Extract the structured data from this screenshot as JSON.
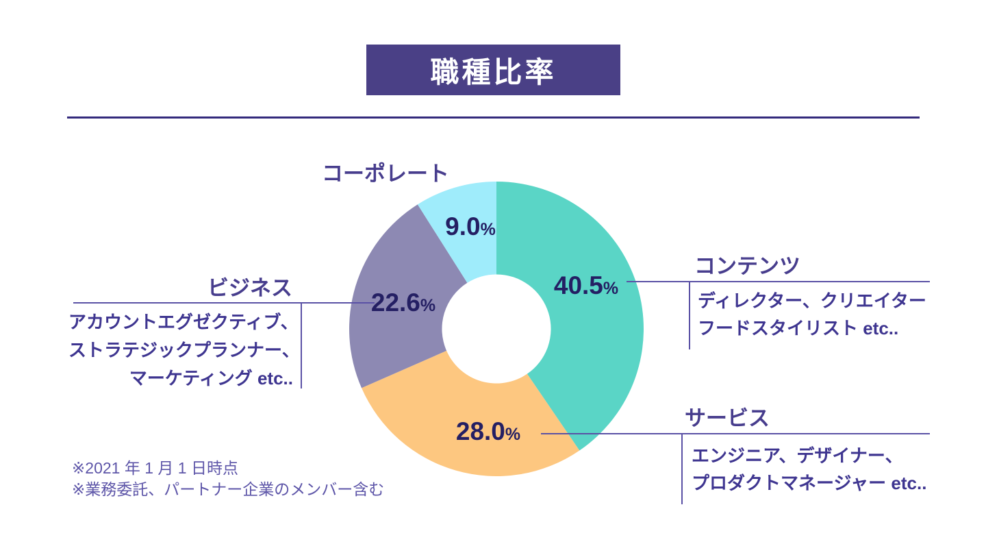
{
  "title": "職種比率",
  "percent_sign": "%",
  "colors": {
    "title_bg": "#4a4086",
    "header_rule": "#332a7c",
    "leader_line": "#5a51a5",
    "percent_text": "#241f63",
    "category_label": "#473d8d",
    "description_text": "#3e3590",
    "footnote_text": "#5d55a8"
  },
  "chart_data": {
    "type": "pie",
    "title": "職種比率",
    "donut": true,
    "inner_radius_ratio": 0.37,
    "start_angle_deg": 0,
    "direction": "clockwise",
    "legend_position": "callouts",
    "slices": [
      {
        "label": "コンテンツ",
        "value": 40.5,
        "pct_label": "40.5",
        "color": "#5ad5c6"
      },
      {
        "label": "サービス",
        "value": 28.0,
        "pct_label": "28.0",
        "color": "#fdc780"
      },
      {
        "label": "ビジネス",
        "value": 22.6,
        "pct_label": "22.6",
        "color": "#8d89b3"
      },
      {
        "label": "コーポレート",
        "value": 9.0,
        "pct_label": "9.0",
        "color": "#9fecfb"
      }
    ]
  },
  "callouts": {
    "corporate": {
      "label": "コーポレート"
    },
    "contents": {
      "label": "コンテンツ",
      "desc_lines": [
        "ディレクター、クリエイター",
        "フードスタイリスト etc.."
      ]
    },
    "service": {
      "label": "サービス",
      "desc_lines": [
        "エンジニア、デザイナー、",
        "プロダクトマネージャー etc.."
      ]
    },
    "business": {
      "label": "ビジネス",
      "desc_lines": [
        "アカウントエグゼクティブ、",
        "ストラテジックプランナー、",
        "マーケティング etc.."
      ]
    }
  },
  "footnotes": {
    "line1": "※2021 年 1 月 1 日時点",
    "line2": "※業務委託、パートナー企業のメンバー含む"
  }
}
